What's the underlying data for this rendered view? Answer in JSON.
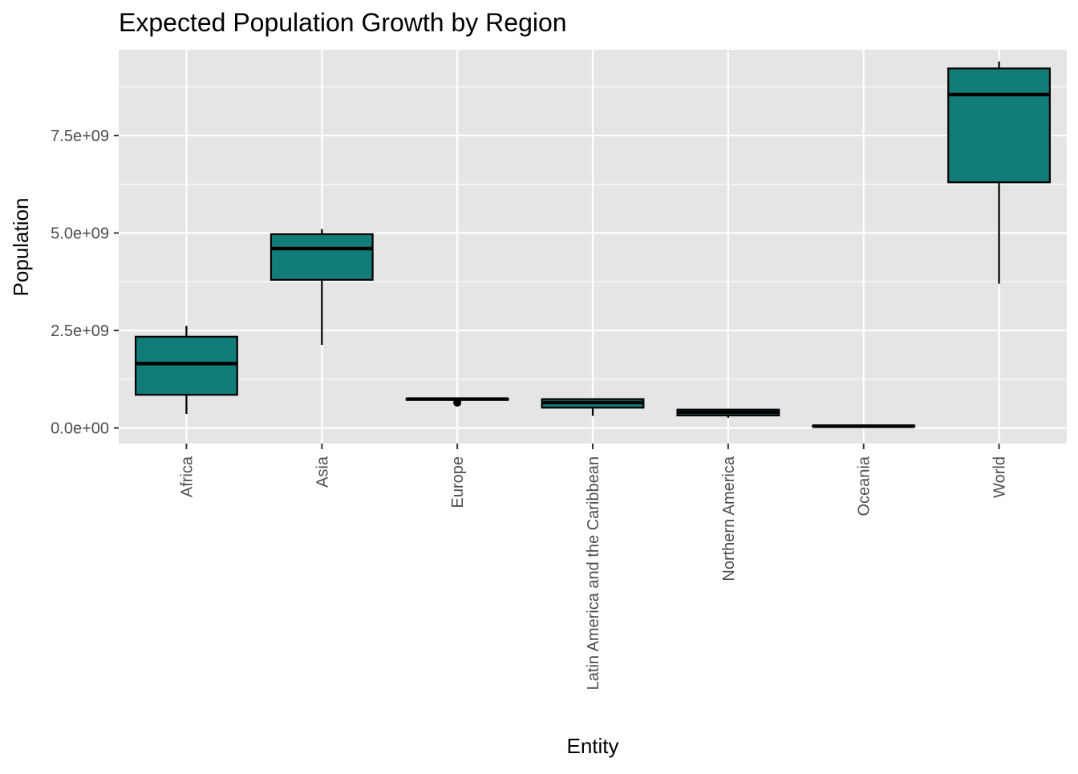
{
  "chart_data": {
    "type": "boxplot",
    "title": "Expected Population Growth by Region",
    "xlabel": "Entity",
    "ylabel": "Population",
    "ylim": [
      -400000000,
      9700000000
    ],
    "y_ticks": [
      0,
      2500000000,
      5000000000,
      7500000000
    ],
    "y_tick_labels": [
      "0.0e+00",
      "2.5e+09",
      "5.0e+09",
      "7.5e+09"
    ],
    "grid": true,
    "legend": "none",
    "categories": [
      "Africa",
      "Asia",
      "Europe",
      "Latin America and the Caribbean",
      "Northern America",
      "Oceania",
      "World"
    ],
    "boxes": [
      {
        "category": "Africa",
        "whisker_low": 360000000,
        "q1": 850000000,
        "median": 1650000000,
        "q3": 2340000000,
        "whisker_high": 2620000000,
        "outliers": []
      },
      {
        "category": "Asia",
        "whisker_low": 2130000000,
        "q1": 3800000000,
        "median": 4600000000,
        "q3": 4970000000,
        "whisker_high": 5100000000,
        "outliers": []
      },
      {
        "category": "Europe",
        "whisker_low": 700000000,
        "q1": 720000000,
        "median": 740000000,
        "q3": 750000000,
        "whisker_high": 755000000,
        "outliers": [
          650000000
        ]
      },
      {
        "category": "Latin America and the Caribbean",
        "whisker_low": 310000000,
        "q1": 520000000,
        "median": 650000000,
        "q3": 740000000,
        "whisker_high": 760000000,
        "outliers": []
      },
      {
        "category": "Northern America",
        "whisker_low": 260000000,
        "q1": 320000000,
        "median": 400000000,
        "q3": 470000000,
        "whisker_high": 490000000,
        "outliers": []
      },
      {
        "category": "Oceania",
        "whisker_low": 25000000,
        "q1": 35000000,
        "median": 45000000,
        "q3": 60000000,
        "whisker_high": 70000000,
        "outliers": []
      },
      {
        "category": "World",
        "whisker_low": 3700000000,
        "q1": 6300000000,
        "median": 8550000000,
        "q3": 9220000000,
        "whisker_high": 9400000000,
        "outliers": []
      }
    ],
    "colors": {
      "panel_background": "#e5e5e5",
      "grid_line": "#ffffff",
      "box_fill": "#117c78",
      "box_outline": "#000000",
      "tick_mark": "#333333"
    }
  }
}
